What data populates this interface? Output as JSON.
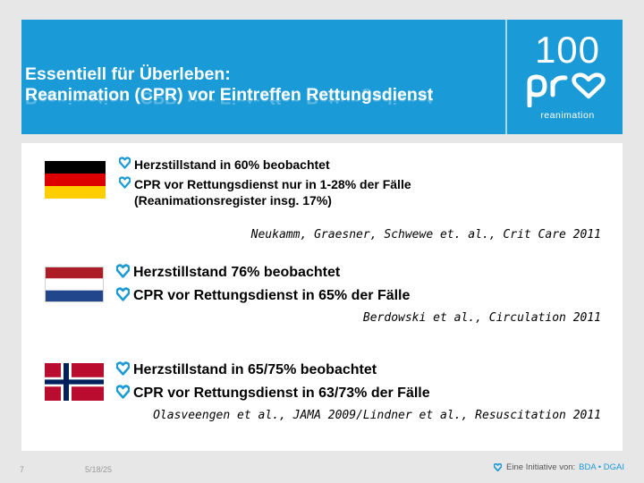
{
  "slide": {
    "title_line1": "Essentiell für Überleben:",
    "title_line2": "Reanimation (CPR) vor Eintreffen Rettungsdienst"
  },
  "logo": {
    "number": "100",
    "word": "pro",
    "subtitle": "reanimation"
  },
  "sections": [
    {
      "flag": "germany-flag",
      "bullets": [
        "Herzstillstand in 60% beobachtet",
        "CPR vor Rettungsdienst nur in 1-28% der Fälle",
        "(Reanimationsregister insg. 17%)"
      ],
      "reference": "Neukamm, Graesner, Schwewe et. al., Crit Care 2011"
    },
    {
      "flag": "netherlands-flag",
      "bullets": [
        "Herzstillstand 76% beobachtet",
        "CPR vor Rettungsdienst in 65% der Fälle"
      ],
      "reference": "Berdowski et al., Circulation 2011"
    },
    {
      "flag": "norway-flag",
      "bullets": [
        "Herzstillstand in 65/75% beobachtet",
        "CPR vor Rettungsdienst in 63/73% der Fälle"
      ],
      "reference": "Olasveengen et al., JAMA 2009/Lindner et al., Resuscitation 2011"
    }
  ],
  "footer": {
    "page_number": "7",
    "date": "5/18/25",
    "initiative_label": "Eine Initiative von:",
    "initiative_orgs": "BDA • DGAI"
  },
  "colors": {
    "header_blue": "#1a9ad6",
    "heart_blue": "#1a9ad6"
  }
}
